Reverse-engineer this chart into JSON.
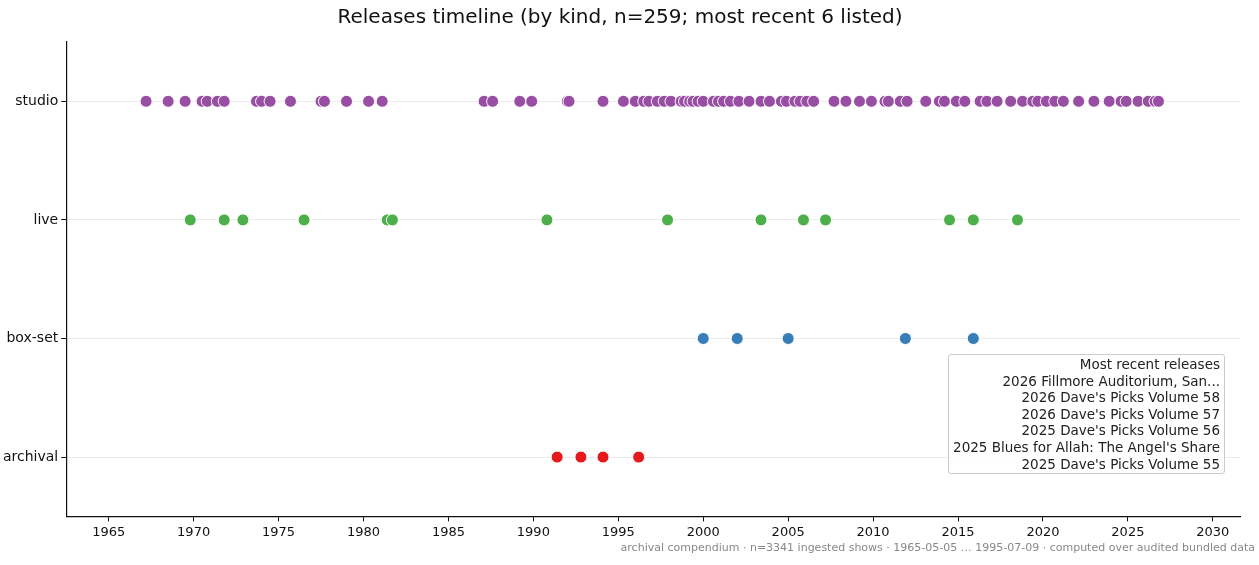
{
  "chart_data": {
    "type": "scatter",
    "title": "Releases timeline (by kind, n=259; most recent 6 listed)",
    "orientation": "horizontal",
    "categories": [
      "studio",
      "live",
      "box-set",
      "archival"
    ],
    "xlim": [
      1962.5,
      2031.6
    ],
    "xticks": [
      1965,
      1970,
      1975,
      1980,
      1985,
      1990,
      1995,
      2000,
      2005,
      2010,
      2015,
      2020,
      2025,
      2030
    ],
    "grid": "y",
    "legend": false,
    "marker": "circle",
    "series": [
      {
        "color": "#984ea3",
        "x": [
          "studio",
          "studio",
          "studio",
          "studio",
          "studio",
          "studio",
          "studio",
          "studio",
          "studio",
          "studio",
          "studio",
          "studio",
          "studio",
          "studio",
          "studio",
          "studio",
          "studio",
          "studio",
          "studio",
          "studio",
          "studio",
          "studio",
          "studio",
          "studio",
          "studio",
          "studio",
          "studio",
          "studio",
          "studio",
          "studio",
          "studio",
          "studio",
          "studio",
          "studio",
          "studio",
          "studio",
          "studio",
          "studio",
          "studio",
          "studio",
          "studio",
          "studio",
          "studio",
          "studio",
          "studio",
          "studio",
          "studio",
          "studio",
          "studio",
          "studio",
          "studio",
          "studio",
          "studio",
          "studio",
          "studio",
          "studio",
          "studio",
          "studio",
          "studio",
          "studio",
          "studio",
          "studio",
          "studio",
          "studio",
          "studio",
          "studio",
          "studio",
          "studio",
          "studio",
          "studio",
          "studio",
          "studio",
          "studio",
          "studio",
          "studio",
          "studio",
          "studio",
          "studio",
          "studio",
          "studio",
          "studio",
          "studio"
        ],
        "values": [
          1967.2,
          1968.5,
          1969.5,
          1970.5,
          1970.8,
          1971.4,
          1971.8,
          1973.7,
          1974.0,
          1974.5,
          1975.7,
          1977.5,
          1977.7,
          1979.0,
          1980.3,
          1981.1,
          1987.1,
          1987.6,
          1989.2,
          1989.9,
          1992.0,
          1992.1,
          1994.1,
          1995.3,
          1996.0,
          1996.5,
          1996.8,
          1997.3,
          1997.7,
          1998.1,
          1998.7,
          1998.9,
          1999.2,
          1999.4,
          1999.7,
          2000.0,
          2000.6,
          2000.9,
          2001.2,
          2001.6,
          2002.1,
          2002.7,
          2003.4,
          2003.9,
          2004.6,
          2004.9,
          2005.4,
          2005.7,
          2006.1,
          2006.5,
          2007.7,
          2008.4,
          2009.2,
          2009.9,
          2010.7,
          2010.9,
          2011.6,
          2012.0,
          2013.1,
          2013.9,
          2014.2,
          2014.9,
          2015.4,
          2016.3,
          2016.7,
          2017.3,
          2018.1,
          2018.8,
          2019.4,
          2019.7,
          2020.2,
          2020.7,
          2021.2,
          2022.1,
          2023.0,
          2023.9,
          2024.6,
          2024.9,
          2025.6,
          2026.2,
          2026.6,
          2026.8
        ]
      },
      {
        "color": "#4daf4a",
        "x": [
          "live",
          "live",
          "live",
          "live",
          "live",
          "live",
          "live",
          "live",
          "live",
          "live",
          "live",
          "live",
          "live",
          "live"
        ],
        "values": [
          1969.8,
          1971.8,
          1972.9,
          1976.5,
          1981.4,
          1981.7,
          1990.8,
          1997.9,
          2003.4,
          2005.9,
          2007.2,
          2014.5,
          2015.9,
          2018.5
        ]
      },
      {
        "color": "#377eb8",
        "x": [
          "box-set",
          "box-set",
          "box-set",
          "box-set",
          "box-set"
        ],
        "values": [
          2000.0,
          2002.0,
          2005.0,
          2011.9,
          2015.9
        ]
      },
      {
        "color": "#e41a1c",
        "x": [
          "archival",
          "archival",
          "archival",
          "archival"
        ],
        "values": [
          1991.4,
          1992.8,
          1994.1,
          1996.2
        ]
      }
    ],
    "annotations": [
      "Most recent releases\n2026  Fillmore Auditorium, San...\n2026  Dave's Picks Volume 58\n2026  Dave's Picks Volume 57\n2025  Dave's Picks Volume 56\n2025  Blues for Allah: The Angel's Share\n2025  Dave's Picks Volume 55",
      "archival compendium · n=3341 ingested shows · 1965-05-05 … 1995-07-09 · computed over audited bundled data"
    ]
  }
}
